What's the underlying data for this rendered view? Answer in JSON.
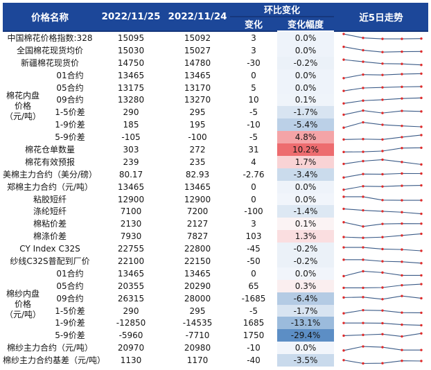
{
  "colors": {
    "header_bg": "#1C4799",
    "header_text": "#FFFFFF",
    "header_underline": "#16377C",
    "spark_line": "#3A5A86",
    "spark_dot": "#E02B2B",
    "body_text": "#141414"
  },
  "header": {
    "name": "价格名称",
    "date1": "2022/11/25",
    "date2": "2022/11/24",
    "mom_group": "环比变化",
    "change": "变化",
    "change_pct": "变化幅度",
    "trend": "近5日走势"
  },
  "chart_data": {
    "type": "table",
    "columns": [
      "价格名称",
      "2022/11/25",
      "2022/11/24",
      "变化",
      "变化幅度",
      "近5日走势"
    ],
    "groups": [
      {
        "label_lines": [
          "棉花内盘",
          "价格",
          "（元/吨）"
        ],
        "start_index": 3,
        "row_count": 6
      },
      {
        "label_lines": [
          "棉纱内盘",
          "价格",
          "（元/吨）"
        ],
        "start_index": 19,
        "row_count": 6
      }
    ],
    "sparkline_style": {
      "points": 5,
      "line_color": "#3A5A86",
      "dot_color": "#E02B2B"
    },
    "rows": [
      {
        "name": "中国棉花价格指数:328",
        "v_1125": "15095",
        "v_1124": "15092",
        "change": "3",
        "change_pct": "0.0%",
        "pct_bg": "#EEF3FA",
        "spark": [
          90,
          48,
          38,
          38,
          41
        ]
      },
      {
        "name": "全国棉花现货均价",
        "v_1125": "15030",
        "v_1124": "15027",
        "change": "3",
        "change_pct": "0.0%",
        "pct_bg": "#EEF3FA",
        "spark": [
          86,
          50,
          30,
          34,
          36
        ]
      },
      {
        "name": "新疆棉花现货价",
        "v_1125": "14750",
        "v_1124": "14780",
        "change": "-30",
        "change_pct": "-0.2%",
        "pct_bg": "#EBF1F8",
        "spark": [
          82,
          60,
          40,
          37,
          26
        ]
      },
      {
        "name": "01合约",
        "v_1125": "13465",
        "v_1124": "13465",
        "change": "0",
        "change_pct": "0.0%",
        "pct_bg": "#EEF3FA",
        "spark": [
          18,
          56,
          52,
          61,
          66
        ]
      },
      {
        "name": "05合约",
        "v_1125": "13175",
        "v_1124": "13170",
        "change": "5",
        "change_pct": "0.0%",
        "pct_bg": "#EEF3FA",
        "spark": [
          15,
          46,
          52,
          58,
          61
        ]
      },
      {
        "name": "09合约",
        "v_1125": "13280",
        "v_1124": "13270",
        "change": "10",
        "change_pct": "0.1%",
        "pct_bg": "#EFF4FA",
        "spark": [
          14,
          44,
          54,
          67,
          73
        ]
      },
      {
        "name": "1-5价差",
        "v_1125": "290",
        "v_1124": "295",
        "change": "-5",
        "change_pct": "-1.7%",
        "pct_bg": "#D8E4F1",
        "spark": [
          27,
          71,
          45,
          68,
          62
        ]
      },
      {
        "name": "1-9价差",
        "v_1125": "185",
        "v_1124": "195",
        "change": "-10",
        "change_pct": "-5.4%",
        "pct_bg": "#BBD0E7",
        "spark": [
          22,
          79,
          53,
          41,
          31
        ]
      },
      {
        "name": "5-9价差",
        "v_1125": "-105",
        "v_1124": "-100",
        "change": "-5",
        "change_pct": "4.8%",
        "pct_bg": "#F4A4A7",
        "spark": [
          29,
          33,
          29,
          54,
          76
        ]
      },
      {
        "name": "棉花仓单数量",
        "v_1125": "303",
        "v_1124": "272",
        "change": "31",
        "change_pct": "10.2%",
        "pct_bg": "#ED6C6F",
        "spark": [
          21,
          23,
          31,
          63,
          66
        ]
      },
      {
        "name": "棉花有效预报",
        "v_1125": "239",
        "v_1124": "235",
        "change": "4",
        "change_pct": "1.7%",
        "pct_bg": "#F9D3D5",
        "spark": [
          27,
          57,
          72,
          47,
          21
        ]
      },
      {
        "name": "美棉主力合约（美分/磅）",
        "v_1125": "80.17",
        "v_1124": "82.93",
        "change": "-2.76",
        "change_pct": "-3.4%",
        "pct_bg": "#CADBEC",
        "spark": [
          15,
          52,
          50,
          58,
          57
        ]
      },
      {
        "name": "郑棉主力合约（元/吨）",
        "v_1125": "13465",
        "v_1124": "13465",
        "change": "0",
        "change_pct": "0.0%",
        "pct_bg": "#EEF3FA",
        "spark": [
          18,
          55,
          52,
          60,
          64
        ]
      },
      {
        "name": "粘胶短纤",
        "v_1125": "12900",
        "v_1124": "12900",
        "change": "0",
        "change_pct": "0.0%",
        "pct_bg": "#F1F5FB",
        "spark": [
          76,
          76,
          40,
          38,
          38
        ]
      },
      {
        "name": "涤纶短纤",
        "v_1125": "7100",
        "v_1124": "7200",
        "change": "-100",
        "change_pct": "-1.4%",
        "pct_bg": "#DDE8F3",
        "spark": [
          80,
          64,
          54,
          44,
          27
        ]
      },
      {
        "name": "棉粘价差",
        "v_1125": "2130",
        "v_1124": "2127",
        "change": "3",
        "change_pct": "0.1%",
        "pct_bg": "#FBF3F4",
        "spark": [
          70,
          25,
          52,
          56,
          55
        ]
      },
      {
        "name": "棉涤价差",
        "v_1125": "7930",
        "v_1124": "7827",
        "change": "103",
        "change_pct": "1.3%",
        "pct_bg": "#FADEE0",
        "spark": [
          45,
          37,
          44,
          62,
          80
        ]
      },
      {
        "name": "CY Index C32S",
        "v_1125": "22755",
        "v_1124": "22800",
        "change": "-45",
        "change_pct": "-0.2%",
        "pct_bg": "#EBF1F8",
        "spark": [
          68,
          68,
          50,
          45,
          31
        ]
      },
      {
        "name": "纱线C32S普配到厂价",
        "v_1125": "22100",
        "v_1124": "22150",
        "change": "-50",
        "change_pct": "-0.2%",
        "pct_bg": "#EBF1F8",
        "spark": [
          62,
          62,
          45,
          40,
          25
        ]
      },
      {
        "name": "01合约",
        "v_1125": "13465",
        "v_1124": "13465",
        "change": "0",
        "change_pct": "0.0%",
        "pct_bg": "#F1F5FB",
        "spark": [
          20,
          72,
          58,
          28,
          28
        ]
      },
      {
        "name": "05合约",
        "v_1125": "20355",
        "v_1124": "20290",
        "change": "65",
        "change_pct": "0.3%",
        "pct_bg": "#FAEEEF",
        "spark": [
          28,
          28,
          31,
          56,
          68
        ]
      },
      {
        "name": "09合约",
        "v_1125": "26315",
        "v_1124": "28000",
        "change": "-1685",
        "change_pct": "-6.4%",
        "pct_bg": "#B4CBE4",
        "spark": [
          58,
          62,
          40,
          74,
          50
        ]
      },
      {
        "name": "1-5价差",
        "v_1125": "290",
        "v_1124": "295",
        "change": "-5",
        "change_pct": "-1.7%",
        "pct_bg": "#D8E4F1",
        "spark": [
          22,
          56,
          52,
          30,
          28
        ]
      },
      {
        "name": "1-9价差",
        "v_1125": "-12850",
        "v_1124": "-14535",
        "change": "1685",
        "change_pct": "-13.1%",
        "pct_bg": "#9BBBDC",
        "spark": [
          52,
          52,
          50,
          34,
          28
        ]
      },
      {
        "name": "5-9价差",
        "v_1125": "-5960",
        "v_1124": "-7710",
        "change": "1750",
        "change_pct": "-29.4%",
        "pct_bg": "#5C8EC5",
        "spark": [
          50,
          58,
          66,
          42,
          74
        ]
      },
      {
        "name": "棉纱主力合约（元/吨）",
        "v_1125": "20970",
        "v_1124": "20980",
        "change": "-10",
        "change_pct": "0.0%",
        "pct_bg": "#F1F5FB",
        "spark": [
          25,
          68,
          60,
          30,
          30
        ]
      },
      {
        "name": "棉纱主力合约基差（元/吨）",
        "v_1125": "1130",
        "v_1124": "1170",
        "change": "-40",
        "change_pct": "-3.5%",
        "pct_bg": "#C9DAEC",
        "spark": [
          55,
          20,
          22,
          48,
          46
        ]
      }
    ]
  }
}
